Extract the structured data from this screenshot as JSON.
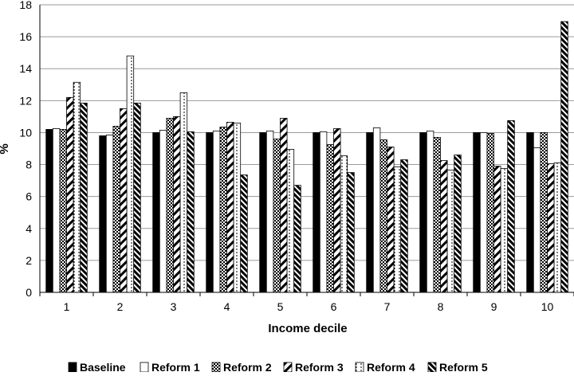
{
  "chart_data": {
    "type": "bar",
    "xlabel": "Income decile",
    "ylabel": "%",
    "ylim": [
      0,
      18
    ],
    "yticks": [
      0,
      2,
      4,
      6,
      8,
      10,
      12,
      14,
      16,
      18
    ],
    "grid": "horizontal",
    "legend_position": "bottom",
    "categories": [
      "1",
      "2",
      "3",
      "4",
      "5",
      "6",
      "7",
      "8",
      "9",
      "10"
    ],
    "series": [
      {
        "name": "Baseline",
        "pattern": "solid-black",
        "values": [
          10.2,
          9.8,
          10.0,
          10.0,
          10.0,
          10.0,
          10.0,
          10.0,
          10.0,
          10.0
        ]
      },
      {
        "name": "Reform 1",
        "pattern": "white",
        "values": [
          10.25,
          9.85,
          10.15,
          10.1,
          10.1,
          10.05,
          10.3,
          10.1,
          10.0,
          9.05
        ]
      },
      {
        "name": "Reform 2",
        "pattern": "checker",
        "values": [
          10.2,
          10.4,
          10.9,
          10.35,
          9.6,
          9.25,
          9.55,
          9.7,
          9.95,
          10.0
        ]
      },
      {
        "name": "Reform 3",
        "pattern": "wide-diagonal",
        "values": [
          12.2,
          11.5,
          11.0,
          10.65,
          10.9,
          10.25,
          9.1,
          8.25,
          7.9,
          8.05
        ]
      },
      {
        "name": "Reform 4",
        "pattern": "dotted-vertical",
        "values": [
          13.15,
          14.8,
          12.5,
          10.6,
          8.95,
          8.55,
          7.85,
          7.65,
          7.75,
          8.1
        ]
      },
      {
        "name": "Reform 5",
        "pattern": "dense-diagonal",
        "values": [
          11.85,
          11.85,
          10.05,
          7.35,
          6.7,
          7.5,
          8.3,
          8.6,
          10.75,
          16.95
        ]
      }
    ]
  }
}
